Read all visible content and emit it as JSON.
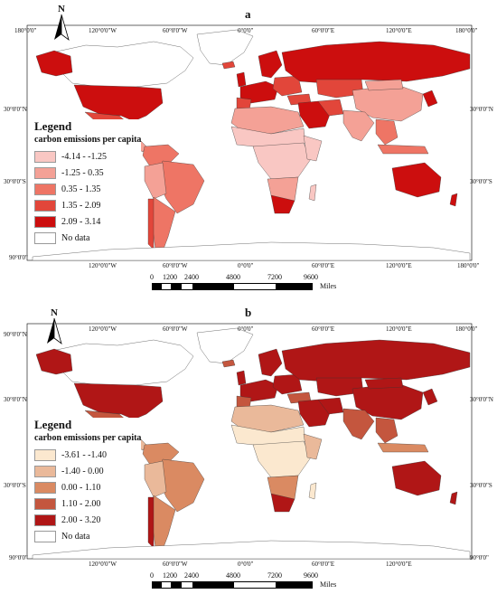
{
  "panels": [
    {
      "id": "a",
      "letter": "a",
      "legend": {
        "title": "Legend",
        "subtitle": "carbon emissions per capita",
        "classes": [
          {
            "label": "-4.14 - -1.25",
            "color": "#f9c7c3"
          },
          {
            "label": "-1.25 - 0.35",
            "color": "#f4a196"
          },
          {
            "label": "0.35 - 1.35",
            "color": "#ee7565"
          },
          {
            "label": "1.35 - 2.09",
            "color": "#e2463a"
          },
          {
            "label": "2.09 - 3.14",
            "color": "#cc0e0e"
          }
        ],
        "nodata_label": "No data"
      }
    },
    {
      "id": "b",
      "letter": "b",
      "legend": {
        "title": "Legend",
        "subtitle": "carbon emissions per capita",
        "classes": [
          {
            "label": "-3.61 - -1.40",
            "color": "#fbe8cf"
          },
          {
            "label": "-1.40 - 0.00",
            "color": "#eab99a"
          },
          {
            "label": "0.00 - 1.10",
            "color": "#da8a62"
          },
          {
            "label": "1.10 - 2.00",
            "color": "#c4563e"
          },
          {
            "label": "2.00 - 3.20",
            "color": "#b01616"
          }
        ],
        "nodata_label": "No data"
      }
    }
  ],
  "coords": {
    "top": [
      "180°0'0\"",
      "120°0'0\"W",
      "60°0'0\"W",
      "0°0'0\"",
      "60°0'0\"E",
      "120°0'0\"E",
      "180°0'0\""
    ],
    "bottom": [
      "120°0'0\"W",
      "60°0'0\"W",
      "0°0'0\"",
      "60°0'0\"E",
      "120°0'0\"E",
      "180°0'0\""
    ],
    "left": [
      "30°0'0\"N",
      "30°0'0\"S",
      "90°0'0\""
    ],
    "right": [
      "30°0'0\"N",
      "30°0'0\"S"
    ],
    "b_left_top": "90°0'0\"N",
    "b_right_bottom": "90°0'0\""
  },
  "north_label": "N",
  "scale": {
    "ticks": [
      "0",
      "1200",
      "2400",
      "4800",
      "7200",
      "9600"
    ],
    "unit": "Miles"
  }
}
